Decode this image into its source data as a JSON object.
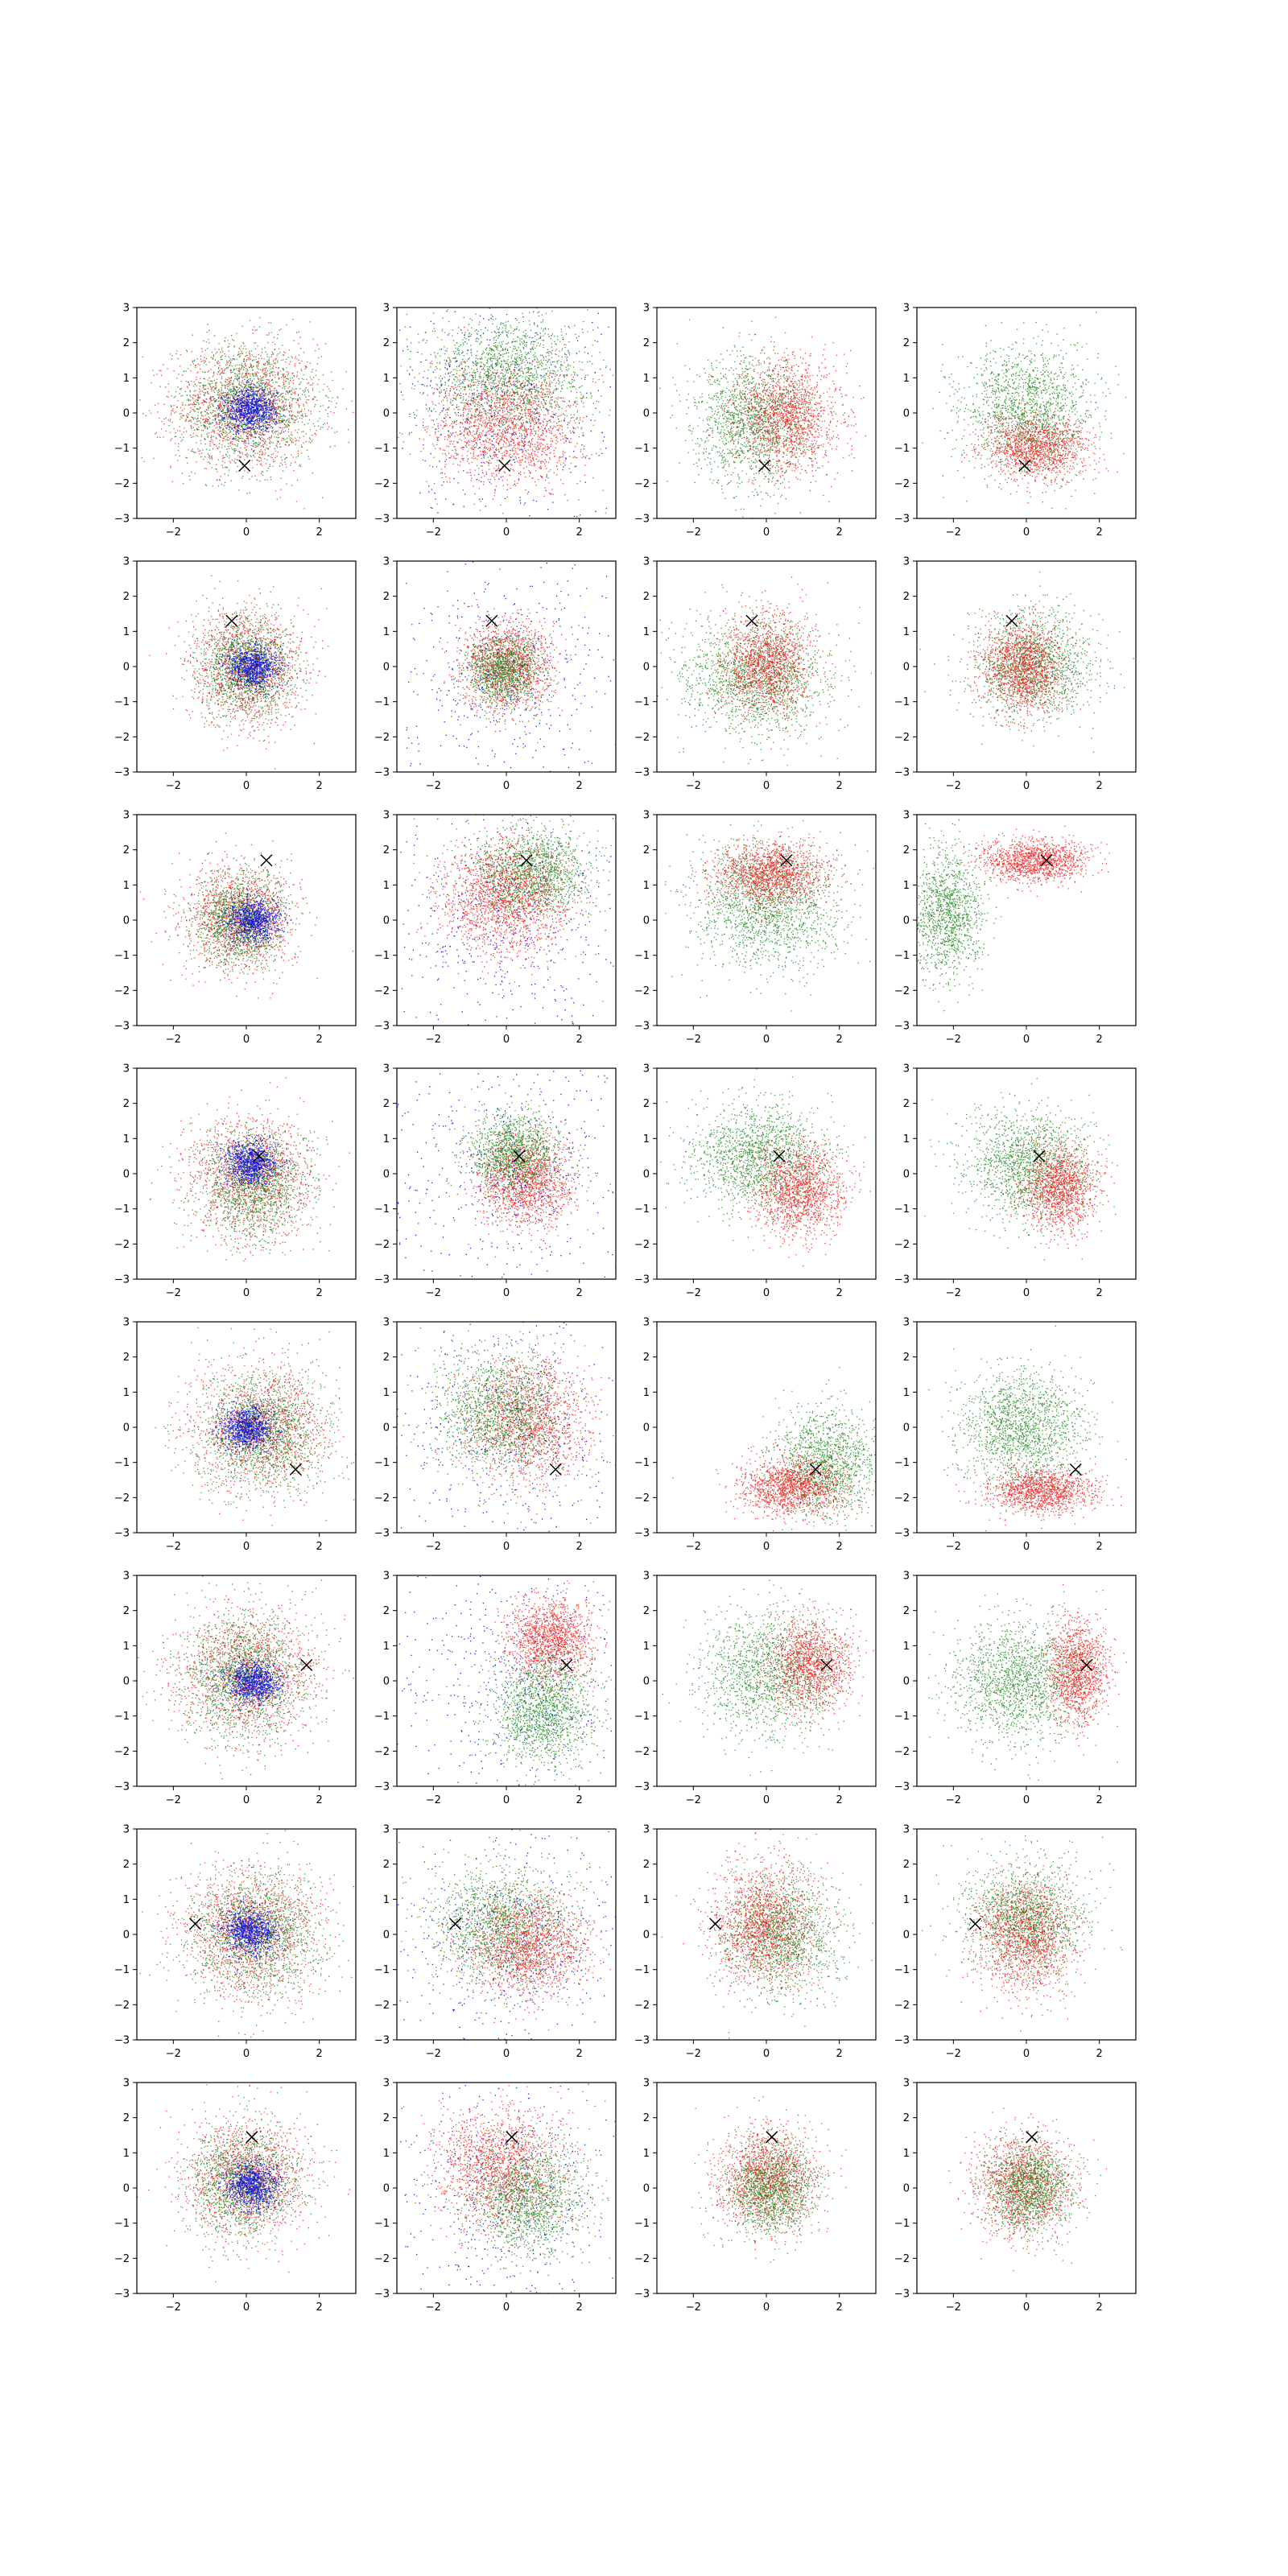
{
  "figure": {
    "layout": {
      "rows": 8,
      "cols": 4
    },
    "colors": {
      "red": "#ee0000",
      "green": "#007a00",
      "blue": "#0000dd",
      "marker": "#000000",
      "axes": "#000000"
    }
  },
  "chart_data": {
    "type": "scatter",
    "xlim": [
      -3,
      3
    ],
    "ylim": [
      -3,
      3
    ],
    "xticks": [
      -2,
      0,
      2
    ],
    "yticks": [
      -3,
      -2,
      -1,
      0,
      1,
      2,
      3
    ],
    "grid": false,
    "legend": "none",
    "marker_shape": "x",
    "panels": [
      {
        "row": 0,
        "col": 0,
        "marker": [
          -0.05,
          -1.5
        ],
        "series": [
          {
            "color": "red",
            "n": 1500,
            "cx": 0.0,
            "cy": 0.2,
            "sx": 1.0,
            "sy": 0.9
          },
          {
            "color": "green",
            "n": 1500,
            "cx": 0.0,
            "cy": 0.2,
            "sx": 0.95,
            "sy": 0.85
          },
          {
            "color": "blue",
            "n": 900,
            "cx": 0.1,
            "cy": 0.1,
            "sx": 0.35,
            "sy": 0.3
          }
        ]
      },
      {
        "row": 0,
        "col": 1,
        "marker": [
          -0.05,
          -1.5
        ],
        "series": [
          {
            "color": "green",
            "n": 1700,
            "cx": 0.0,
            "cy": 1.1,
            "sx": 1.1,
            "sy": 0.85
          },
          {
            "color": "red",
            "n": 1700,
            "cx": 0.0,
            "cy": -0.4,
            "sx": 1.0,
            "sy": 0.85
          },
          {
            "color": "blue",
            "n": 450,
            "cx": 0.0,
            "cy": 0.0,
            "sx": 1.8,
            "sy": 1.8
          }
        ]
      },
      {
        "row": 0,
        "col": 2,
        "marker": [
          -0.05,
          -1.5
        ],
        "series": [
          {
            "color": "green",
            "n": 1500,
            "cx": -0.4,
            "cy": -0.2,
            "sx": 0.8,
            "sy": 0.9
          },
          {
            "color": "red",
            "n": 1500,
            "cx": 0.6,
            "cy": -0.1,
            "sx": 0.7,
            "sy": 0.8
          }
        ]
      },
      {
        "row": 0,
        "col": 3,
        "marker": [
          -0.05,
          -1.5
        ],
        "series": [
          {
            "color": "green",
            "n": 1600,
            "cx": 0.0,
            "cy": 0.1,
            "sx": 0.9,
            "sy": 0.9
          },
          {
            "color": "red",
            "n": 1300,
            "cx": 0.3,
            "cy": -1.0,
            "sx": 0.7,
            "sy": 0.45
          }
        ]
      },
      {
        "row": 1,
        "col": 0,
        "marker": [
          -0.4,
          1.3
        ],
        "series": [
          {
            "color": "red",
            "n": 1400,
            "cx": 0.0,
            "cy": 0.0,
            "sx": 0.75,
            "sy": 0.8
          },
          {
            "color": "green",
            "n": 1400,
            "cx": 0.0,
            "cy": 0.0,
            "sx": 0.65,
            "sy": 0.7
          },
          {
            "color": "blue",
            "n": 800,
            "cx": 0.15,
            "cy": 0.0,
            "sx": 0.35,
            "sy": 0.3
          }
        ]
      },
      {
        "row": 1,
        "col": 1,
        "marker": [
          -0.4,
          1.3
        ],
        "series": [
          {
            "color": "red",
            "n": 1400,
            "cx": 0.0,
            "cy": 0.0,
            "sx": 0.6,
            "sy": 0.65
          },
          {
            "color": "green",
            "n": 1200,
            "cx": -0.1,
            "cy": -0.1,
            "sx": 0.5,
            "sy": 0.5
          },
          {
            "color": "blue",
            "n": 500,
            "cx": 0.0,
            "cy": 0.0,
            "sx": 1.9,
            "sy": 1.9
          }
        ]
      },
      {
        "row": 1,
        "col": 2,
        "marker": [
          -0.4,
          1.3
        ],
        "series": [
          {
            "color": "green",
            "n": 1600,
            "cx": -0.3,
            "cy": -0.3,
            "sx": 1.0,
            "sy": 0.8
          },
          {
            "color": "red",
            "n": 1400,
            "cx": 0.0,
            "cy": 0.1,
            "sx": 0.6,
            "sy": 0.7
          }
        ]
      },
      {
        "row": 1,
        "col": 3,
        "marker": [
          -0.4,
          1.3
        ],
        "series": [
          {
            "color": "green",
            "n": 1500,
            "cx": 0.2,
            "cy": 0.0,
            "sx": 0.8,
            "sy": 0.75
          },
          {
            "color": "red",
            "n": 1400,
            "cx": -0.1,
            "cy": 0.0,
            "sx": 0.55,
            "sy": 0.65
          }
        ]
      },
      {
        "row": 2,
        "col": 0,
        "marker": [
          0.55,
          1.7
        ],
        "series": [
          {
            "color": "red",
            "n": 1400,
            "cx": -0.2,
            "cy": 0.1,
            "sx": 0.75,
            "sy": 0.75
          },
          {
            "color": "green",
            "n": 1300,
            "cx": -0.2,
            "cy": 0.0,
            "sx": 0.6,
            "sy": 0.65
          },
          {
            "color": "blue",
            "n": 800,
            "cx": 0.2,
            "cy": 0.0,
            "sx": 0.35,
            "sy": 0.3
          }
        ]
      },
      {
        "row": 2,
        "col": 1,
        "marker": [
          0.55,
          1.7
        ],
        "series": [
          {
            "color": "green",
            "n": 1500,
            "cx": 0.7,
            "cy": 1.4,
            "sx": 0.75,
            "sy": 0.6
          },
          {
            "color": "red",
            "n": 1700,
            "cx": -0.1,
            "cy": 0.6,
            "sx": 0.9,
            "sy": 0.8
          },
          {
            "color": "blue",
            "n": 450,
            "cx": 0.0,
            "cy": -0.3,
            "sx": 1.8,
            "sy": 1.6
          }
        ]
      },
      {
        "row": 2,
        "col": 2,
        "marker": [
          0.55,
          1.7
        ],
        "series": [
          {
            "color": "green",
            "n": 1700,
            "cx": 0.0,
            "cy": 0.4,
            "sx": 1.0,
            "sy": 0.9
          },
          {
            "color": "red",
            "n": 1400,
            "cx": 0.1,
            "cy": 1.3,
            "sx": 0.75,
            "sy": 0.45
          }
        ]
      },
      {
        "row": 2,
        "col": 3,
        "marker": [
          0.55,
          1.7
        ],
        "series": [
          {
            "color": "green",
            "n": 1300,
            "cx": -2.2,
            "cy": 0.2,
            "sx": 0.5,
            "sy": 0.9
          },
          {
            "color": "red",
            "n": 1300,
            "cx": 0.2,
            "cy": 1.7,
            "sx": 0.7,
            "sy": 0.3
          }
        ]
      },
      {
        "row": 3,
        "col": 0,
        "marker": [
          0.35,
          0.5
        ],
        "series": [
          {
            "color": "red",
            "n": 1400,
            "cx": 0.1,
            "cy": -0.1,
            "sx": 0.85,
            "sy": 0.85
          },
          {
            "color": "green",
            "n": 1400,
            "cx": 0.2,
            "cy": -0.3,
            "sx": 0.75,
            "sy": 0.75
          },
          {
            "color": "blue",
            "n": 850,
            "cx": 0.1,
            "cy": 0.3,
            "sx": 0.35,
            "sy": 0.3
          }
        ]
      },
      {
        "row": 3,
        "col": 1,
        "marker": [
          0.35,
          0.5
        ],
        "series": [
          {
            "color": "red",
            "n": 1500,
            "cx": 0.5,
            "cy": -0.2,
            "sx": 0.65,
            "sy": 0.65
          },
          {
            "color": "green",
            "n": 1300,
            "cx": 0.2,
            "cy": 0.6,
            "sx": 0.6,
            "sy": 0.55
          },
          {
            "color": "blue",
            "n": 500,
            "cx": 0.0,
            "cy": 0.0,
            "sx": 1.9,
            "sy": 1.9
          }
        ]
      },
      {
        "row": 3,
        "col": 2,
        "marker": [
          0.35,
          0.5
        ],
        "series": [
          {
            "color": "green",
            "n": 1600,
            "cx": -0.2,
            "cy": 0.5,
            "sx": 0.9,
            "sy": 0.75
          },
          {
            "color": "red",
            "n": 1400,
            "cx": 0.9,
            "cy": -0.5,
            "sx": 0.6,
            "sy": 0.65
          }
        ]
      },
      {
        "row": 3,
        "col": 3,
        "marker": [
          0.35,
          0.5
        ],
        "series": [
          {
            "color": "green",
            "n": 1500,
            "cx": 0.0,
            "cy": 0.3,
            "sx": 0.85,
            "sy": 0.8
          },
          {
            "color": "red",
            "n": 1300,
            "cx": 0.9,
            "cy": -0.4,
            "sx": 0.5,
            "sy": 0.6
          }
        ]
      },
      {
        "row": 4,
        "col": 0,
        "marker": [
          1.35,
          -1.2
        ],
        "series": [
          {
            "color": "red",
            "n": 1500,
            "cx": 0.4,
            "cy": 0.0,
            "sx": 0.95,
            "sy": 0.9
          },
          {
            "color": "green",
            "n": 1500,
            "cx": 0.4,
            "cy": -0.1,
            "sx": 0.85,
            "sy": 0.85
          },
          {
            "color": "blue",
            "n": 850,
            "cx": 0.0,
            "cy": 0.0,
            "sx": 0.35,
            "sy": 0.3
          }
        ]
      },
      {
        "row": 4,
        "col": 1,
        "marker": [
          1.35,
          -1.2
        ],
        "series": [
          {
            "color": "red",
            "n": 1500,
            "cx": 0.6,
            "cy": 0.2,
            "sx": 0.8,
            "sy": 0.9
          },
          {
            "color": "green",
            "n": 1500,
            "cx": -0.2,
            "cy": 0.4,
            "sx": 0.85,
            "sy": 0.85
          },
          {
            "color": "blue",
            "n": 450,
            "cx": 0.0,
            "cy": 0.0,
            "sx": 1.9,
            "sy": 1.9
          }
        ]
      },
      {
        "row": 4,
        "col": 2,
        "marker": [
          1.35,
          -1.2
        ],
        "series": [
          {
            "color": "green",
            "n": 1400,
            "cx": 1.6,
            "cy": -1.0,
            "sx": 0.7,
            "sy": 0.75
          },
          {
            "color": "red",
            "n": 1400,
            "cx": 0.7,
            "cy": -1.7,
            "sx": 0.7,
            "sy": 0.4
          }
        ]
      },
      {
        "row": 4,
        "col": 3,
        "marker": [
          1.35,
          -1.2
        ],
        "series": [
          {
            "color": "green",
            "n": 1600,
            "cx": -0.1,
            "cy": 0.0,
            "sx": 0.85,
            "sy": 0.8
          },
          {
            "color": "red",
            "n": 1300,
            "cx": 0.4,
            "cy": -1.8,
            "sx": 0.7,
            "sy": 0.3
          }
        ]
      },
      {
        "row": 5,
        "col": 0,
        "marker": [
          1.65,
          0.45
        ],
        "series": [
          {
            "color": "red",
            "n": 1500,
            "cx": 0.0,
            "cy": 0.2,
            "sx": 0.95,
            "sy": 0.95
          },
          {
            "color": "green",
            "n": 1500,
            "cx": -0.1,
            "cy": 0.1,
            "sx": 0.85,
            "sy": 0.85
          },
          {
            "color": "blue",
            "n": 850,
            "cx": 0.2,
            "cy": 0.0,
            "sx": 0.35,
            "sy": 0.3
          }
        ]
      },
      {
        "row": 5,
        "col": 1,
        "marker": [
          1.65,
          0.45
        ],
        "series": [
          {
            "color": "red",
            "n": 1400,
            "cx": 1.2,
            "cy": 1.2,
            "sx": 0.6,
            "sy": 0.6
          },
          {
            "color": "green",
            "n": 1500,
            "cx": 1.0,
            "cy": -0.8,
            "sx": 0.7,
            "sy": 0.75
          },
          {
            "color": "blue",
            "n": 450,
            "cx": 0.0,
            "cy": 0.0,
            "sx": 1.9,
            "sy": 1.9
          }
        ]
      },
      {
        "row": 5,
        "col": 2,
        "marker": [
          1.65,
          0.45
        ],
        "series": [
          {
            "color": "green",
            "n": 1500,
            "cx": 0.0,
            "cy": 0.2,
            "sx": 0.9,
            "sy": 0.9
          },
          {
            "color": "red",
            "n": 1300,
            "cx": 1.2,
            "cy": 0.5,
            "sx": 0.55,
            "sy": 0.65
          }
        ]
      },
      {
        "row": 5,
        "col": 3,
        "marker": [
          1.65,
          0.45
        ],
        "series": [
          {
            "color": "green",
            "n": 1600,
            "cx": -0.3,
            "cy": 0.0,
            "sx": 0.9,
            "sy": 0.85
          },
          {
            "color": "red",
            "n": 1300,
            "cx": 1.4,
            "cy": 0.3,
            "sx": 0.4,
            "sy": 0.7
          }
        ]
      },
      {
        "row": 6,
        "col": 0,
        "marker": [
          -1.4,
          0.3
        ],
        "series": [
          {
            "color": "red",
            "n": 1500,
            "cx": 0.1,
            "cy": 0.1,
            "sx": 0.95,
            "sy": 0.9
          },
          {
            "color": "green",
            "n": 1500,
            "cx": 0.3,
            "cy": 0.0,
            "sx": 0.9,
            "sy": 0.85
          },
          {
            "color": "blue",
            "n": 850,
            "cx": 0.1,
            "cy": 0.1,
            "sx": 0.35,
            "sy": 0.3
          }
        ]
      },
      {
        "row": 6,
        "col": 1,
        "marker": [
          -1.4,
          0.3
        ],
        "series": [
          {
            "color": "green",
            "n": 1600,
            "cx": -0.1,
            "cy": 0.3,
            "sx": 0.95,
            "sy": 0.85
          },
          {
            "color": "red",
            "n": 1500,
            "cx": 0.6,
            "cy": -0.3,
            "sx": 0.8,
            "sy": 0.7
          },
          {
            "color": "blue",
            "n": 450,
            "cx": 0.0,
            "cy": 0.0,
            "sx": 1.9,
            "sy": 1.9
          }
        ]
      },
      {
        "row": 6,
        "col": 2,
        "marker": [
          -1.4,
          0.3
        ],
        "series": [
          {
            "color": "green",
            "n": 1500,
            "cx": 0.4,
            "cy": 0.0,
            "sx": 0.8,
            "sy": 0.8
          },
          {
            "color": "red",
            "n": 1500,
            "cx": -0.1,
            "cy": 0.3,
            "sx": 0.7,
            "sy": 0.85
          }
        ]
      },
      {
        "row": 6,
        "col": 3,
        "marker": [
          -1.4,
          0.3
        ],
        "series": [
          {
            "color": "green",
            "n": 1500,
            "cx": 0.0,
            "cy": 0.5,
            "sx": 0.85,
            "sy": 0.8
          },
          {
            "color": "red",
            "n": 1400,
            "cx": 0.0,
            "cy": -0.1,
            "sx": 0.65,
            "sy": 0.8
          }
        ]
      },
      {
        "row": 7,
        "col": 0,
        "marker": [
          0.15,
          1.45
        ],
        "series": [
          {
            "color": "red",
            "n": 1400,
            "cx": 0.0,
            "cy": 0.3,
            "sx": 0.85,
            "sy": 0.85
          },
          {
            "color": "green",
            "n": 1400,
            "cx": -0.1,
            "cy": 0.2,
            "sx": 0.75,
            "sy": 0.8
          },
          {
            "color": "blue",
            "n": 850,
            "cx": 0.15,
            "cy": 0.1,
            "sx": 0.35,
            "sy": 0.3
          }
        ]
      },
      {
        "row": 7,
        "col": 1,
        "marker": [
          0.15,
          1.45
        ],
        "series": [
          {
            "color": "red",
            "n": 1600,
            "cx": -0.2,
            "cy": 0.6,
            "sx": 0.9,
            "sy": 0.85
          },
          {
            "color": "green",
            "n": 1400,
            "cx": 0.6,
            "cy": -0.3,
            "sx": 0.8,
            "sy": 0.8
          },
          {
            "color": "blue",
            "n": 450,
            "cx": 0.0,
            "cy": 0.0,
            "sx": 1.9,
            "sy": 1.9
          }
        ]
      },
      {
        "row": 7,
        "col": 2,
        "marker": [
          0.15,
          1.45
        ],
        "series": [
          {
            "color": "red",
            "n": 1500,
            "cx": 0.0,
            "cy": 0.3,
            "sx": 0.7,
            "sy": 0.7
          },
          {
            "color": "green",
            "n": 1300,
            "cx": 0.1,
            "cy": 0.0,
            "sx": 0.6,
            "sy": 0.65
          }
        ]
      },
      {
        "row": 7,
        "col": 3,
        "marker": [
          0.15,
          1.45
        ],
        "series": [
          {
            "color": "red",
            "n": 1400,
            "cx": -0.1,
            "cy": 0.1,
            "sx": 0.65,
            "sy": 0.7
          },
          {
            "color": "green",
            "n": 1300,
            "cx": 0.1,
            "cy": 0.0,
            "sx": 0.6,
            "sy": 0.6
          }
        ]
      }
    ]
  }
}
